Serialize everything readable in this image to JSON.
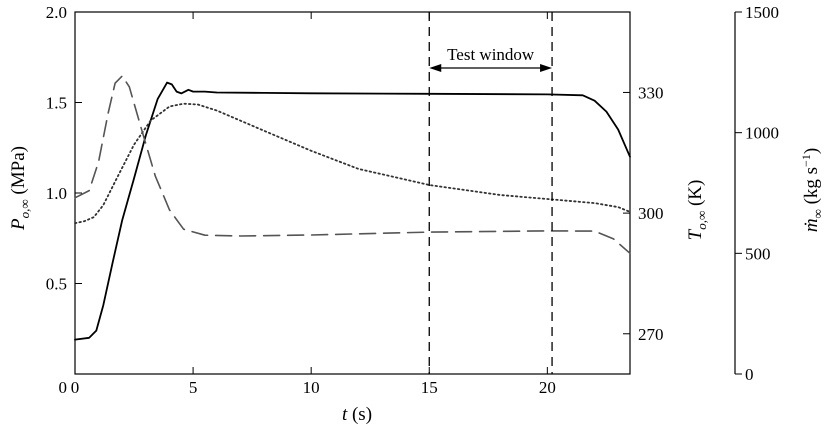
{
  "chart_data": {
    "type": "line",
    "xlabel": "t (s)",
    "xlim": [
      0,
      23.5
    ],
    "xticks": [
      0,
      5,
      10,
      15,
      20
    ],
    "axes": {
      "left": {
        "label": "P_o,∞ (MPa)",
        "lim": [
          0,
          2.0
        ],
        "ticks": [
          0.5,
          1.0,
          1.5,
          2.0
        ],
        "tick_labels": [
          "0.5",
          "1.0",
          "1.5",
          "2.0"
        ]
      },
      "middle": {
        "label": "T_o,∞ (K)",
        "lim": [
          260,
          350
        ],
        "ticks": [
          270,
          300,
          330
        ],
        "tick_labels": [
          "270",
          "300",
          "330"
        ]
      },
      "right": {
        "label": "ṁ_∞ (kg s⁻¹)",
        "lim": [
          0,
          1500
        ],
        "ticks": [
          0,
          500,
          1000,
          1500
        ],
        "tick_labels": [
          "0",
          "500",
          "1000",
          "1500"
        ]
      }
    },
    "annotation": {
      "text": "Test window",
      "x_start": 15,
      "x_end": 20.2
    },
    "series": [
      {
        "axis": "left",
        "style": "solid",
        "color": "#000000",
        "x": [
          0,
          0.6,
          0.9,
          1.2,
          1.6,
          2.0,
          2.5,
          3.0,
          3.5,
          3.9,
          4.1,
          4.3,
          4.5,
          4.8,
          5.0,
          5.5,
          6,
          8,
          10,
          15,
          20,
          21.5,
          22,
          22.5,
          23,
          23.5
        ],
        "y": [
          0.19,
          0.2,
          0.24,
          0.38,
          0.62,
          0.85,
          1.08,
          1.32,
          1.52,
          1.61,
          1.6,
          1.56,
          1.55,
          1.57,
          1.56,
          1.56,
          1.555,
          1.553,
          1.551,
          1.548,
          1.545,
          1.54,
          1.51,
          1.45,
          1.35,
          1.2
        ]
      },
      {
        "axis": "middle",
        "style": "dotted",
        "color": "#333333",
        "x": [
          0,
          0.4,
          0.8,
          1.2,
          1.8,
          2.5,
          3.2,
          4.0,
          4.6,
          5.2,
          6,
          7,
          8,
          10,
          12,
          15,
          18,
          20,
          22,
          23,
          23.5
        ],
        "y": [
          297.5,
          298,
          299,
          302,
          309,
          317,
          323,
          326.5,
          327.2,
          327,
          325.5,
          323,
          320.5,
          315.5,
          311,
          307,
          304.5,
          303.5,
          302.5,
          301.5,
          300.3
        ]
      },
      {
        "axis": "right",
        "style": "dashed",
        "color": "#555555",
        "x": [
          0,
          0.6,
          1.0,
          1.4,
          1.7,
          2.0,
          2.3,
          2.8,
          3.4,
          4.0,
          4.6,
          5.5,
          7,
          10,
          15,
          20,
          22,
          22.8,
          23.5
        ],
        "y": [
          730,
          760,
          880,
          1080,
          1205,
          1235,
          1190,
          1020,
          820,
          680,
          600,
          575,
          572,
          576,
          588,
          593,
          592,
          560,
          500
        ]
      }
    ]
  }
}
